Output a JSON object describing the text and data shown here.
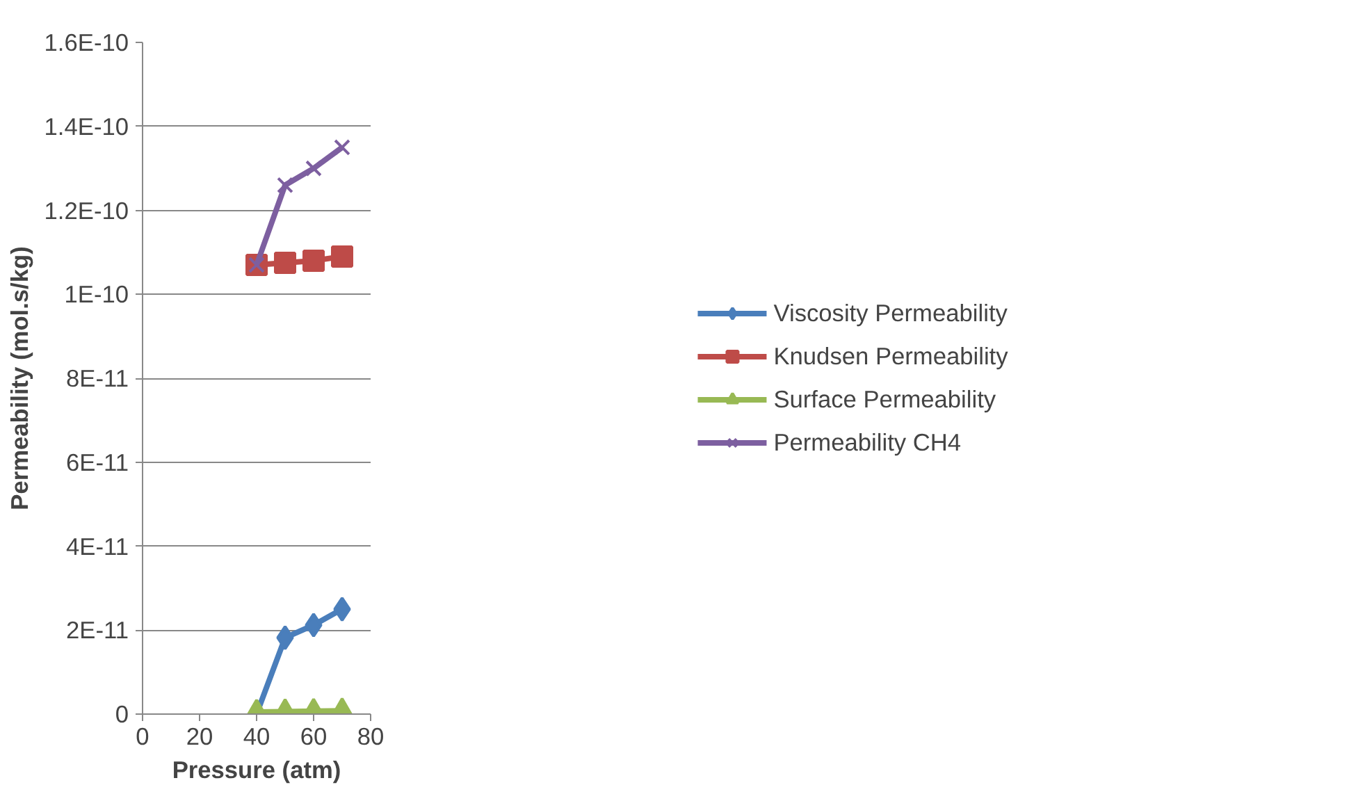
{
  "chart_data": {
    "type": "line",
    "xlabel": "Pressure (atm)",
    "ylabel": "Permeability (mol.s/kg)",
    "x": [
      40,
      50,
      60,
      70
    ],
    "series": [
      {
        "name": "Viscosity Permeability",
        "color": "#4a7ebb",
        "marker": "diamond",
        "values": [
          0,
          1.82e-11,
          2.12e-11,
          2.5e-11
        ]
      },
      {
        "name": "Knudsen Permeability",
        "color": "#be4b48",
        "marker": "square",
        "values": [
          1.07e-10,
          1.075e-10,
          1.08e-10,
          1.09e-10
        ]
      },
      {
        "name": "Surface Permeability",
        "color": "#98b954",
        "marker": "triangle",
        "values": [
          5e-13,
          6e-13,
          7e-13,
          8e-13
        ]
      },
      {
        "name": "Permeability CH4",
        "color": "#7d5fa0",
        "marker": "cross",
        "values": [
          1.07e-10,
          1.26e-10,
          1.3e-10,
          1.35e-10
        ]
      }
    ],
    "xlim": [
      0,
      80
    ],
    "xticks": [
      0,
      20,
      40,
      60,
      80
    ],
    "ylim": [
      0,
      1.6e-10
    ],
    "yticks": [
      0,
      {
        "value": 2e-11,
        "label": "2E-11"
      },
      {
        "value": 4e-11,
        "label": "4E-11"
      },
      {
        "value": 6e-11,
        "label": "6E-11"
      },
      {
        "value": 8e-11,
        "label": "8E-11"
      },
      {
        "value": 1e-10,
        "label": "1E-10"
      },
      {
        "value": 1.2e-10,
        "label": "1.2E-10"
      },
      {
        "value": 1.4e-10,
        "label": "1.4E-10"
      },
      {
        "value": 1.6e-10,
        "label": "1.6E-10"
      }
    ],
    "grid": "y",
    "legend": "right"
  }
}
